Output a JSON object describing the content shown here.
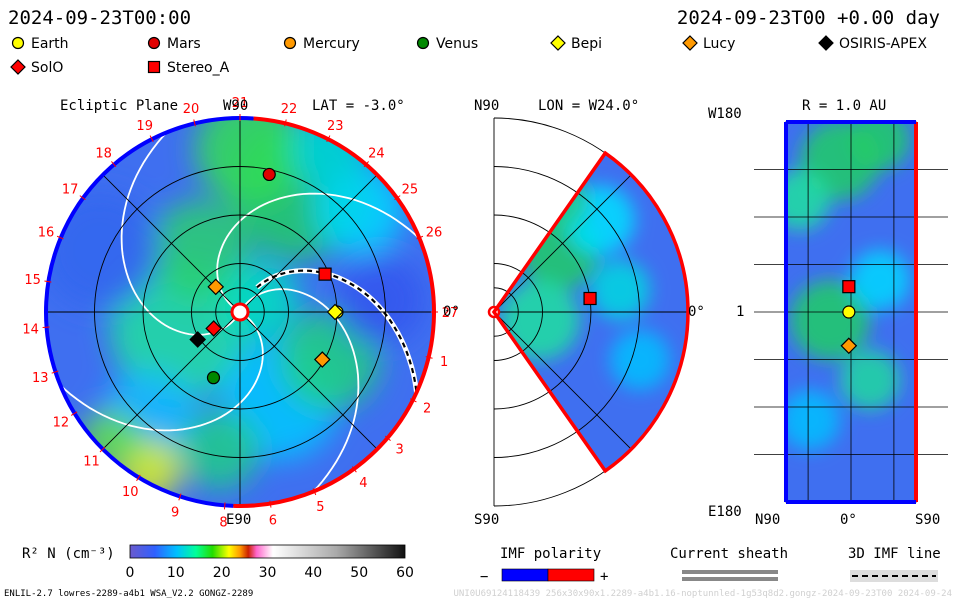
{
  "header": {
    "date_left": "2024-09-23T00:00",
    "date_right": "2024-09-23T00 +0.00 day"
  },
  "legend": {
    "items": [
      {
        "name": "Earth",
        "marker": "circle",
        "color": "#ffff00"
      },
      {
        "name": "Mars",
        "marker": "circle",
        "color": "#e00000"
      },
      {
        "name": "Mercury",
        "marker": "circle",
        "color": "#ff9900"
      },
      {
        "name": "Venus",
        "marker": "circle",
        "color": "#008800"
      },
      {
        "name": "Bepi",
        "marker": "diamond",
        "color": "#ffff00"
      },
      {
        "name": "Lucy",
        "marker": "diamond",
        "color": "#ff9900"
      },
      {
        "name": "OSIRIS-APEX",
        "marker": "diamond",
        "color": "#000000"
      },
      {
        "name": "SolO",
        "marker": "diamond",
        "color": "#ff0000"
      },
      {
        "name": "Stereo_A",
        "marker": "square",
        "color": "#ff0000"
      }
    ]
  },
  "panels": {
    "ecliptic": {
      "title": "Ecliptic Plane",
      "lat_label": "LAT = -3.0°",
      "top_label": "W90",
      "bottom_label": "E90",
      "right_label": "0°",
      "sector_numbers": [
        "27",
        "1",
        "2",
        "3",
        "4",
        "5",
        "6",
        "8",
        "9",
        "10",
        "11",
        "12",
        "13",
        "14",
        "15",
        "16",
        "17",
        "18",
        "19",
        "20",
        "21",
        "22",
        "23",
        "24",
        "25",
        "26"
      ],
      "rings_au": [
        0.25,
        0.5,
        1.0,
        1.5,
        2.0
      ],
      "max_au": 2.0
    },
    "meridional": {
      "top_label": "N90",
      "lon_label": "LON = W24.0°",
      "bottom_label": "S90",
      "right_label": "0°"
    },
    "radial": {
      "title": "R = 1.0 AU",
      "top_left_label": "W180",
      "mid_left_label": "1",
      "bottom_left_label": "E180",
      "bottom_labels": [
        "N90",
        "0°",
        "S90"
      ]
    }
  },
  "colorbar": {
    "label": "R² N (cm⁻³)",
    "ticks": [
      "0",
      "10",
      "20",
      "30",
      "40",
      "50",
      "60"
    ],
    "min": 0,
    "max": 60
  },
  "imf": {
    "title": "IMF polarity",
    "minus": "−",
    "plus": "+",
    "minus_color": "#0000ff",
    "plus_color": "#ff0000"
  },
  "sheath": {
    "title": "Current sheath"
  },
  "imf3d": {
    "title": "3D IMF line"
  },
  "footer": {
    "left": "ENLIL-2.7 lowres-2289-a4b1 WSA_V2.2 GONGZ-2289",
    "right": "UNI0U69124118439 256x30x90x1.2289-a4b1.16-noptunnled-1g53q8d2.gongz-2024-09-23T00 2024-09-24"
  },
  "chart_data": {
    "type": "heatmap",
    "title": "Ecliptic Plane",
    "colorbar_label": "R² N (cm⁻³)",
    "colorbar_range": [
      0,
      60
    ],
    "max_radius_au": 2.0,
    "bodies_ecliptic": [
      {
        "name": "Earth",
        "r_au": 1.0,
        "lon_deg": 0
      },
      {
        "name": "Stereo_A",
        "r_au": 0.96,
        "lon_deg": 24
      },
      {
        "name": "Mars",
        "r_au": 1.45,
        "lon_deg": 78
      },
      {
        "name": "Lucy",
        "r_au": 0.36,
        "lon_deg": 134
      },
      {
        "name": "SolO",
        "r_au": 0.32,
        "lon_deg": 212
      },
      {
        "name": "OSIRIS-APEX",
        "r_au": 0.52,
        "lon_deg": 213
      },
      {
        "name": "Venus",
        "r_au": 0.73,
        "lon_deg": 248
      },
      {
        "name": "Bepi",
        "r_au": 0.98,
        "lon_deg": 0
      },
      {
        "name": "Lucy_2",
        "r_au": 0.98,
        "lon_deg": 330
      }
    ],
    "bodies_meridional": [
      {
        "name": "Stereo_A",
        "r_au": 1.0,
        "lat_deg": 8
      }
    ],
    "bodies_radial": [
      {
        "name": "Stereo_A",
        "lat_deg": 3,
        "lon_deg": 24
      },
      {
        "name": "Earth",
        "lat_deg": 3,
        "lon_deg": 0
      },
      {
        "name": "Lucy",
        "lat_deg": 3,
        "lon_deg": -32
      }
    ]
  }
}
